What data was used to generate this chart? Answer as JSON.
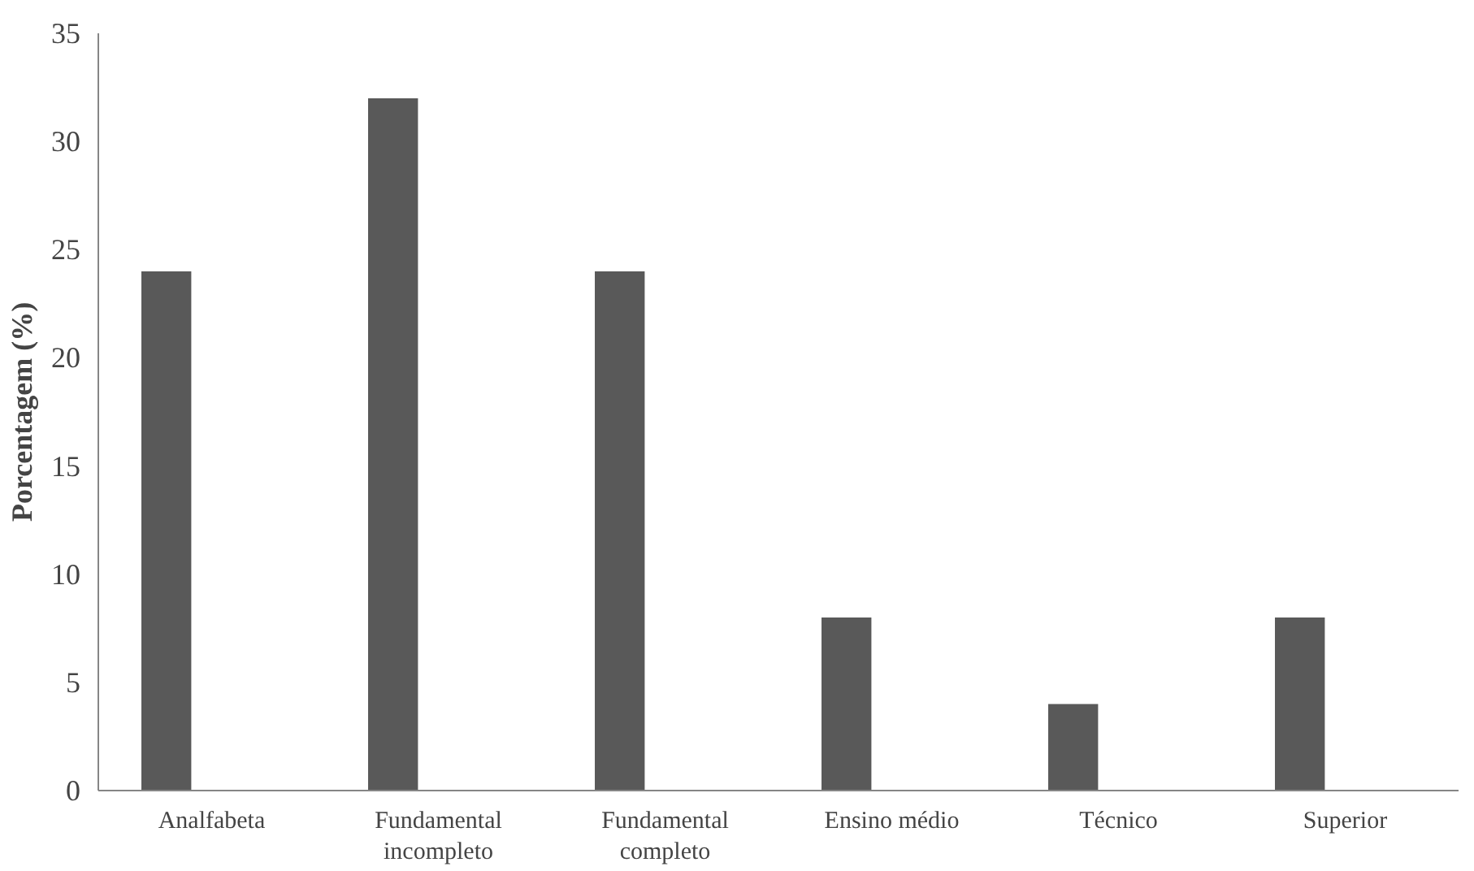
{
  "chart_data": {
    "type": "bar",
    "ylabel": "Porcentagem (%)",
    "categories": [
      "Analfabeta",
      "Fundamental incompleto",
      "Fundamental completo",
      "Ensino médio",
      "Técnico",
      "Superior"
    ],
    "values": [
      24,
      32,
      24,
      8,
      4,
      8
    ],
    "color": "#595959",
    "ylim": [
      0,
      35
    ],
    "yticks": [
      0,
      5,
      10,
      15,
      20,
      25,
      30,
      35
    ],
    "grid": false
  }
}
